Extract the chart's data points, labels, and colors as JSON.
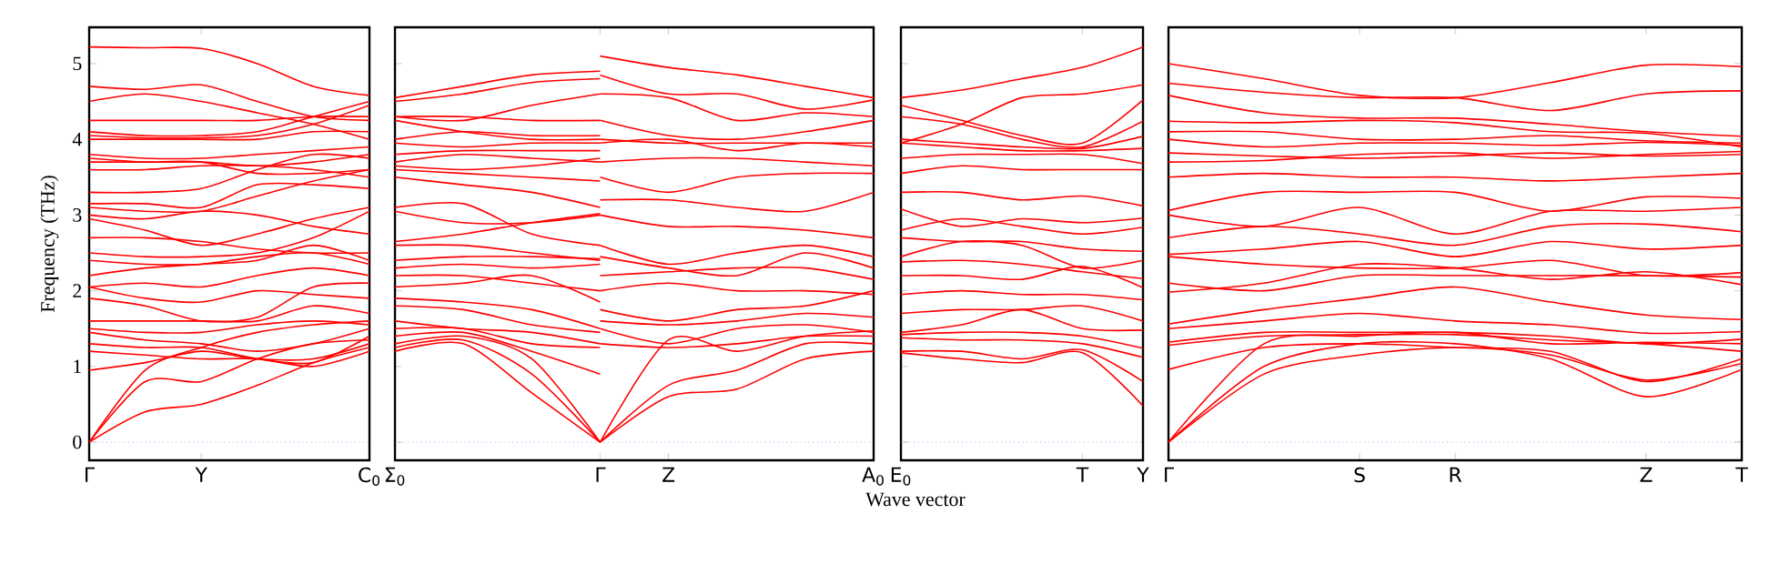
{
  "chart_data": [
    {
      "type": "line",
      "ylabel": "Frequency (THz)",
      "ylim": [
        -0.24,
        5.48
      ],
      "yticks": [
        0,
        1,
        2,
        3,
        4,
        5
      ],
      "categories": [
        "Γ",
        null,
        "Y",
        null,
        null,
        "C$_{0}$"
      ],
      "ref_lines": [
        {
          "axis": "y",
          "value": 0,
          "color": "#7070ff",
          "line_style": "dotted"
        }
      ],
      "series": [
        {
          "color": "#ff0000",
          "values": [
            5.22,
            5.21,
            5.2,
            5.0,
            4.7,
            4.58
          ]
        },
        {
          "color": "#ff0000",
          "values": [
            4.7,
            4.66,
            4.72,
            4.5,
            4.3,
            4.25
          ]
        },
        {
          "color": "#ff0000",
          "values": [
            4.5,
            4.6,
            4.5,
            4.35,
            4.2,
            4.0
          ]
        },
        {
          "color": "#ff0000",
          "values": [
            4.25,
            4.25,
            4.25,
            4.25,
            4.3,
            4.3
          ]
        },
        {
          "color": "#ff0000",
          "values": [
            4.1,
            4.05,
            4.05,
            4.1,
            4.3,
            4.5
          ]
        },
        {
          "color": "#ff0000",
          "values": [
            4.05,
            4.02,
            4.02,
            4.05,
            4.2,
            4.45
          ]
        },
        {
          "color": "#ff0000",
          "values": [
            4.0,
            4.0,
            4.0,
            4.0,
            4.1,
            4.1
          ]
        },
        {
          "color": "#ff0000",
          "values": [
            3.8,
            3.75,
            3.75,
            3.8,
            3.85,
            3.9
          ]
        },
        {
          "color": "#ff0000",
          "values": [
            3.75,
            3.7,
            3.7,
            3.65,
            3.7,
            3.8
          ]
        },
        {
          "color": "#ff0000",
          "values": [
            3.7,
            3.7,
            3.7,
            3.55,
            3.55,
            3.6
          ]
        },
        {
          "color": "#ff0000",
          "values": [
            3.6,
            3.6,
            3.65,
            3.65,
            3.6,
            3.5
          ]
        },
        {
          "color": "#ff0000",
          "values": [
            3.3,
            3.3,
            3.35,
            3.6,
            3.8,
            3.75
          ]
        },
        {
          "color": "#ff0000",
          "values": [
            3.15,
            3.15,
            3.1,
            3.4,
            3.4,
            3.35
          ]
        },
        {
          "color": "#ff0000",
          "values": [
            3.1,
            3.05,
            3.05,
            3.25,
            3.45,
            3.6
          ]
        },
        {
          "color": "#ff0000",
          "values": [
            3.0,
            2.95,
            3.05,
            3.0,
            2.85,
            2.75
          ]
        },
        {
          "color": "#ff0000",
          "values": [
            2.95,
            2.8,
            2.6,
            2.75,
            2.95,
            3.1
          ]
        },
        {
          "color": "#ff0000",
          "values": [
            2.7,
            2.7,
            2.65,
            2.55,
            2.5,
            2.5
          ]
        },
        {
          "color": "#ff0000",
          "values": [
            2.5,
            2.45,
            2.45,
            2.5,
            2.7,
            3.05
          ]
        },
        {
          "color": "#ff0000",
          "values": [
            2.4,
            2.35,
            2.35,
            2.45,
            2.5,
            2.35
          ]
        },
        {
          "color": "#ff0000",
          "values": [
            2.2,
            2.3,
            2.35,
            2.4,
            2.6,
            2.4
          ]
        },
        {
          "color": "#ff0000",
          "values": [
            2.05,
            2.1,
            2.05,
            2.2,
            2.3,
            2.2
          ]
        },
        {
          "color": "#ff0000",
          "values": [
            2.05,
            1.9,
            1.85,
            2.0,
            1.95,
            1.9
          ]
        },
        {
          "color": "#ff0000",
          "values": [
            1.9,
            1.8,
            1.6,
            1.65,
            2.05,
            2.1
          ]
        },
        {
          "color": "#ff0000",
          "values": [
            1.6,
            1.6,
            1.6,
            1.6,
            1.8,
            1.7
          ]
        },
        {
          "color": "#ff0000",
          "values": [
            1.5,
            1.45,
            1.45,
            1.55,
            1.6,
            1.55
          ]
        },
        {
          "color": "#ff0000",
          "values": [
            1.45,
            1.35,
            1.3,
            1.2,
            1.3,
            1.5
          ]
        },
        {
          "color": "#ff0000",
          "values": [
            1.3,
            1.25,
            1.25,
            1.1,
            1.05,
            1.4
          ]
        },
        {
          "color": "#ff0000",
          "values": [
            1.2,
            1.15,
            1.1,
            1.1,
            1.0,
            1.2
          ]
        },
        {
          "color": "#ff0000",
          "values": [
            0.95,
            1.05,
            1.2,
            1.1,
            1.1,
            1.3
          ]
        },
        {
          "color": "#ff0000",
          "values": [
            0,
            0.95,
            1.25,
            1.45,
            1.55,
            1.6
          ]
        },
        {
          "color": "#ff0000",
          "values": [
            0,
            0.8,
            0.8,
            1.1,
            1.3,
            1.35
          ]
        },
        {
          "color": "#ff0000",
          "values": [
            0,
            0.4,
            0.5,
            0.75,
            1.05,
            1.25
          ]
        }
      ]
    },
    {
      "type": "line",
      "tick_labels": "x",
      "ylim": [
        -0.24,
        5.48
      ],
      "yticks": [
        0,
        1,
        2,
        3,
        4,
        5
      ],
      "categories": [
        "Σ$_{0}$",
        null,
        null,
        "Γ",
        "Z",
        null,
        null,
        "A$_{0}$"
      ],
      "ref_lines": [
        {
          "axis": "y",
          "value": 0,
          "color": "#7070ff",
          "line_style": "dotted"
        }
      ],
      "series": [
        {
          "color": "#ff0000",
          "values": [
            4.55,
            4.7,
            4.85,
            4.9,
            null,
            null,
            null,
            null
          ]
        },
        {
          "color": "#ff0000",
          "values": [
            4.5,
            4.6,
            4.75,
            4.8,
            null,
            null,
            null,
            null
          ]
        },
        {
          "color": "#ff0000",
          "values": [
            4.3,
            4.25,
            4.45,
            4.6,
            null,
            null,
            null,
            null
          ]
        },
        {
          "color": "#ff0000",
          "values": [
            4.3,
            4.3,
            4.25,
            4.25,
            null,
            null,
            null,
            null
          ]
        },
        {
          "color": "#ff0000",
          "values": [
            4.25,
            4.1,
            4.0,
            4.0,
            null,
            null,
            null,
            null
          ]
        },
        {
          "color": "#ff0000",
          "values": [
            4.0,
            4.1,
            4.05,
            4.05,
            null,
            null,
            null,
            null
          ]
        },
        {
          "color": "#ff0000",
          "values": [
            3.95,
            3.9,
            3.95,
            3.95,
            null,
            null,
            null,
            null
          ]
        },
        {
          "color": "#ff0000",
          "values": [
            3.8,
            3.85,
            3.85,
            3.85,
            null,
            null,
            null,
            null
          ]
        },
        {
          "color": "#ff0000",
          "values": [
            3.7,
            3.8,
            3.75,
            3.7,
            null,
            null,
            null,
            null
          ]
        },
        {
          "color": "#ff0000",
          "values": [
            3.65,
            3.6,
            3.65,
            3.75,
            null,
            null,
            null,
            null
          ]
        },
        {
          "color": "#ff0000",
          "values": [
            3.6,
            3.55,
            3.5,
            3.45,
            null,
            null,
            null,
            null
          ]
        },
        {
          "color": "#ff0000",
          "values": [
            3.5,
            3.4,
            3.3,
            3.1,
            null,
            null,
            null,
            null
          ]
        },
        {
          "color": "#ff0000",
          "values": [
            3.1,
            3.15,
            2.75,
            2.6,
            null,
            null,
            null,
            null
          ]
        },
        {
          "color": "#ff0000",
          "values": [
            3.05,
            2.9,
            2.9,
            3.0,
            null,
            null,
            null,
            null
          ]
        },
        {
          "color": "#ff0000",
          "values": [
            2.65,
            2.75,
            2.9,
            3.02,
            null,
            null,
            null,
            null
          ]
        },
        {
          "color": "#ff0000",
          "values": [
            2.6,
            2.6,
            2.5,
            2.4,
            null,
            null,
            null,
            null
          ]
        },
        {
          "color": "#ff0000",
          "values": [
            2.4,
            2.45,
            2.45,
            2.42,
            null,
            null,
            null,
            null
          ]
        },
        {
          "color": "#ff0000",
          "values": [
            2.3,
            2.35,
            2.3,
            2.35,
            null,
            null,
            null,
            null
          ]
        },
        {
          "color": "#ff0000",
          "values": [
            2.2,
            2.2,
            2.1,
            2.0,
            null,
            null,
            null,
            null
          ]
        },
        {
          "color": "#ff0000",
          "values": [
            2.05,
            2.1,
            2.2,
            1.85,
            null,
            null,
            null,
            null
          ]
        },
        {
          "color": "#ff0000",
          "values": [
            1.9,
            1.85,
            1.75,
            1.5,
            null,
            null,
            null,
            null
          ]
        },
        {
          "color": "#ff0000",
          "values": [
            1.8,
            1.75,
            1.55,
            1.45,
            null,
            null,
            null,
            null
          ]
        },
        {
          "color": "#ff0000",
          "values": [
            1.6,
            1.5,
            1.45,
            1.3,
            null,
            null,
            null,
            null
          ]
        },
        {
          "color": "#ff0000",
          "values": [
            1.5,
            1.5,
            1.3,
            1.25,
            null,
            null,
            null,
            null
          ]
        },
        {
          "color": "#ff0000",
          "values": [
            1.4,
            1.45,
            1.2,
            0.9,
            null,
            null,
            null,
            null
          ]
        },
        {
          "color": "#ff0000",
          "values": [
            1.3,
            1.4,
            1.1,
            0,
            null,
            null,
            null,
            null
          ]
        },
        {
          "color": "#ff0000",
          "values": [
            1.25,
            1.35,
            0.9,
            0,
            null,
            null,
            null,
            null
          ]
        },
        {
          "color": "#ff0000",
          "values": [
            1.2,
            1.3,
            0.65,
            0,
            null,
            null,
            null,
            null
          ]
        },
        {
          "color": "#ff0000",
          "values": [
            null,
            null,
            null,
            5.1,
            4.95,
            4.85,
            4.7,
            4.55
          ]
        },
        {
          "color": "#ff0000",
          "values": [
            null,
            null,
            null,
            4.85,
            4.6,
            4.6,
            4.4,
            4.52
          ]
        },
        {
          "color": "#ff0000",
          "values": [
            null,
            null,
            null,
            4.6,
            4.55,
            4.25,
            4.35,
            4.3
          ]
        },
        {
          "color": "#ff0000",
          "values": [
            null,
            null,
            null,
            4.25,
            4.05,
            4.0,
            4.1,
            4.25
          ]
        },
        {
          "color": "#ff0000",
          "values": [
            null,
            null,
            null,
            4.0,
            3.95,
            3.95,
            3.95,
            3.95
          ]
        },
        {
          "color": "#ff0000",
          "values": [
            null,
            null,
            null,
            3.95,
            4.0,
            3.85,
            3.95,
            3.9
          ]
        },
        {
          "color": "#ff0000",
          "values": [
            null,
            null,
            null,
            3.7,
            3.75,
            3.75,
            3.7,
            3.65
          ]
        },
        {
          "color": "#ff0000",
          "values": [
            null,
            null,
            null,
            3.5,
            3.3,
            3.5,
            3.55,
            3.55
          ]
        },
        {
          "color": "#ff0000",
          "values": [
            null,
            null,
            null,
            3.2,
            3.2,
            3.1,
            3.05,
            3.3
          ]
        },
        {
          "color": "#ff0000",
          "values": [
            null,
            null,
            null,
            3.0,
            2.85,
            2.85,
            2.8,
            2.7
          ]
        },
        {
          "color": "#ff0000",
          "values": [
            null,
            null,
            null,
            2.6,
            2.35,
            2.5,
            2.6,
            2.45
          ]
        },
        {
          "color": "#ff0000",
          "values": [
            null,
            null,
            null,
            2.45,
            2.3,
            2.2,
            2.5,
            2.3
          ]
        },
        {
          "color": "#ff0000",
          "values": [
            null,
            null,
            null,
            2.2,
            2.25,
            2.3,
            2.3,
            2.15
          ]
        },
        {
          "color": "#ff0000",
          "values": [
            null,
            null,
            null,
            2.0,
            2.1,
            2.0,
            2.0,
            1.95
          ]
        },
        {
          "color": "#ff0000",
          "values": [
            null,
            null,
            null,
            1.75,
            1.6,
            1.75,
            1.8,
            2.0
          ]
        },
        {
          "color": "#ff0000",
          "values": [
            null,
            null,
            null,
            1.6,
            1.55,
            1.6,
            1.7,
            1.65
          ]
        },
        {
          "color": "#ff0000",
          "values": [
            null,
            null,
            null,
            1.5,
            1.3,
            1.5,
            1.55,
            1.45
          ]
        },
        {
          "color": "#ff0000",
          "values": [
            null,
            null,
            null,
            1.3,
            1.25,
            1.3,
            1.4,
            1.4
          ]
        },
        {
          "color": "#ff0000",
          "values": [
            null,
            null,
            null,
            0,
            0.75,
            0.95,
            1.3,
            1.3
          ]
        },
        {
          "color": "#ff0000",
          "values": [
            null,
            null,
            null,
            0,
            0.6,
            0.7,
            1.1,
            1.2
          ]
        },
        {
          "color": "#ff0000",
          "values": [
            null,
            null,
            null,
            0,
            1.35,
            1.2,
            1.4,
            1.47
          ]
        }
      ]
    },
    {
      "type": "line",
      "tick_labels": "x",
      "xlabel": "Wave vector",
      "ylim": [
        -0.24,
        5.48
      ],
      "yticks": [
        0,
        1,
        2,
        3,
        4,
        5
      ],
      "categories": [
        "E$_{0}$",
        null,
        null,
        "T",
        "Y"
      ],
      "ref_lines": [
        {
          "axis": "y",
          "value": 0,
          "color": "#7070ff",
          "line_style": "dotted"
        }
      ],
      "series": [
        {
          "color": "#ff0000",
          "values": [
            4.55,
            4.65,
            4.8,
            4.95,
            5.22
          ]
        },
        {
          "color": "#ff0000",
          "values": [
            3.95,
            4.2,
            4.55,
            4.6,
            4.72
          ]
        },
        {
          "color": "#ff0000",
          "values": [
            4.45,
            4.25,
            4.05,
            3.95,
            4.52
          ]
        },
        {
          "color": "#ff0000",
          "values": [
            4.3,
            4.2,
            4.0,
            3.9,
            4.24
          ]
        },
        {
          "color": "#ff0000",
          "values": [
            4.0,
            3.95,
            3.9,
            3.88,
            4.04
          ]
        },
        {
          "color": "#ff0000",
          "values": [
            3.95,
            3.9,
            3.85,
            3.85,
            3.88
          ]
        },
        {
          "color": "#ff0000",
          "values": [
            3.75,
            3.8,
            3.8,
            3.8,
            3.68
          ]
        },
        {
          "color": "#ff0000",
          "values": [
            3.55,
            3.65,
            3.6,
            3.6,
            3.6
          ]
        },
        {
          "color": "#ff0000",
          "values": [
            3.3,
            3.3,
            3.2,
            3.25,
            3.12
          ]
        },
        {
          "color": "#ff0000",
          "values": [
            3.08,
            2.85,
            2.95,
            2.9,
            2.96
          ]
        },
        {
          "color": "#ff0000",
          "values": [
            2.8,
            2.95,
            2.85,
            2.75,
            2.84
          ]
        },
        {
          "color": "#ff0000",
          "values": [
            2.7,
            2.65,
            2.65,
            2.55,
            2.52
          ]
        },
        {
          "color": "#ff0000",
          "values": [
            2.45,
            2.65,
            2.6,
            2.3,
            2.4
          ]
        },
        {
          "color": "#ff0000",
          "values": [
            2.38,
            2.4,
            2.35,
            2.25,
            2.16
          ]
        },
        {
          "color": "#ff0000",
          "values": [
            2.2,
            2.2,
            2.15,
            2.32,
            2.04
          ]
        },
        {
          "color": "#ff0000",
          "values": [
            1.95,
            2.0,
            1.95,
            1.95,
            1.88
          ]
        },
        {
          "color": "#ff0000",
          "values": [
            1.7,
            1.75,
            1.75,
            1.8,
            1.6
          ]
        },
        {
          "color": "#ff0000",
          "values": [
            1.45,
            1.55,
            1.75,
            1.5,
            1.48
          ]
        },
        {
          "color": "#ff0000",
          "values": [
            1.42,
            1.45,
            1.45,
            1.4,
            1.24
          ]
        },
        {
          "color": "#ff0000",
          "values": [
            1.38,
            1.35,
            1.35,
            1.3,
            1.12
          ]
        },
        {
          "color": "#ff0000",
          "values": [
            1.2,
            1.2,
            1.1,
            1.22,
            0.8
          ]
        },
        {
          "color": "#ff0000",
          "values": [
            1.18,
            1.1,
            1.05,
            1.18,
            0.48
          ]
        }
      ]
    },
    {
      "type": "line",
      "tick_labels": "x",
      "ylim": [
        -0.24,
        5.48
      ],
      "yticks": [
        0,
        1,
        2,
        3,
        4,
        5
      ],
      "categories": [
        "Γ",
        null,
        "S",
        "R",
        null,
        "Z",
        "T"
      ],
      "ref_lines": [
        {
          "axis": "y",
          "value": 0,
          "color": "#7070ff",
          "line_style": "dotted"
        }
      ],
      "series": [
        {
          "color": "#ff0000",
          "values": [
            5.0,
            4.8,
            4.58,
            4.55,
            4.75,
            4.98,
            4.96
          ]
        },
        {
          "color": "#ff0000",
          "values": [
            4.74,
            4.62,
            4.55,
            4.55,
            4.38,
            4.6,
            4.64
          ]
        },
        {
          "color": "#ff0000",
          "values": [
            4.58,
            4.35,
            4.28,
            4.28,
            4.2,
            4.1,
            4.04
          ]
        },
        {
          "color": "#ff0000",
          "values": [
            4.24,
            4.22,
            4.25,
            4.22,
            4.1,
            4.08,
            3.9
          ]
        },
        {
          "color": "#ff0000",
          "values": [
            4.1,
            4.1,
            4.0,
            4.0,
            4.05,
            3.98,
            3.95
          ]
        },
        {
          "color": "#ff0000",
          "values": [
            4.0,
            3.9,
            3.95,
            3.95,
            3.92,
            3.96,
            3.92
          ]
        },
        {
          "color": "#ff0000",
          "values": [
            3.82,
            3.78,
            3.75,
            3.78,
            3.82,
            3.78,
            3.8
          ]
        },
        {
          "color": "#ff0000",
          "values": [
            3.7,
            3.72,
            3.8,
            3.82,
            3.75,
            3.8,
            3.84
          ]
        },
        {
          "color": "#ff0000",
          "values": [
            3.5,
            3.55,
            3.5,
            3.5,
            3.45,
            3.5,
            3.55
          ]
        },
        {
          "color": "#ff0000",
          "values": [
            3.06,
            3.3,
            3.3,
            3.3,
            3.05,
            3.24,
            3.22
          ]
        },
        {
          "color": "#ff0000",
          "values": [
            3.0,
            2.85,
            3.1,
            2.75,
            3.05,
            3.05,
            3.1
          ]
        },
        {
          "color": "#ff0000",
          "values": [
            2.7,
            2.85,
            2.75,
            2.6,
            2.85,
            2.88,
            2.78
          ]
        },
        {
          "color": "#ff0000",
          "values": [
            2.48,
            2.55,
            2.65,
            2.45,
            2.65,
            2.55,
            2.6
          ]
        },
        {
          "color": "#ff0000",
          "values": [
            2.45,
            2.35,
            2.3,
            2.3,
            2.4,
            2.2,
            2.24
          ]
        },
        {
          "color": "#ff0000",
          "values": [
            2.1,
            2.0,
            2.2,
            2.2,
            2.2,
            2.2,
            2.18
          ]
        },
        {
          "color": "#ff0000",
          "values": [
            1.98,
            2.1,
            2.35,
            2.3,
            2.15,
            2.25,
            2.08
          ]
        },
        {
          "color": "#ff0000",
          "values": [
            1.56,
            1.75,
            1.9,
            2.05,
            1.85,
            1.68,
            1.62
          ]
        },
        {
          "color": "#ff0000",
          "values": [
            1.5,
            1.6,
            1.7,
            1.6,
            1.55,
            1.44,
            1.46
          ]
        },
        {
          "color": "#ff0000",
          "values": [
            1.32,
            1.45,
            1.45,
            1.45,
            1.4,
            1.3,
            1.36
          ]
        },
        {
          "color": "#ff0000",
          "values": [
            1.28,
            1.4,
            1.42,
            1.42,
            1.35,
            1.3,
            1.2
          ]
        },
        {
          "color": "#ff0000",
          "values": [
            0.96,
            1.25,
            1.3,
            1.25,
            1.2,
            0.8,
            1.1
          ]
        },
        {
          "color": "#ff0000",
          "values": [
            0,
            1.3,
            1.4,
            1.45,
            1.3,
            1.32,
            1.3
          ]
        },
        {
          "color": "#ff0000",
          "values": [
            0,
            1.0,
            1.3,
            1.3,
            1.1,
            0.6,
            0.96
          ]
        },
        {
          "color": "#ff0000",
          "values": [
            0,
            0.9,
            1.15,
            1.25,
            1.15,
            0.82,
            1.04
          ]
        }
      ]
    }
  ]
}
